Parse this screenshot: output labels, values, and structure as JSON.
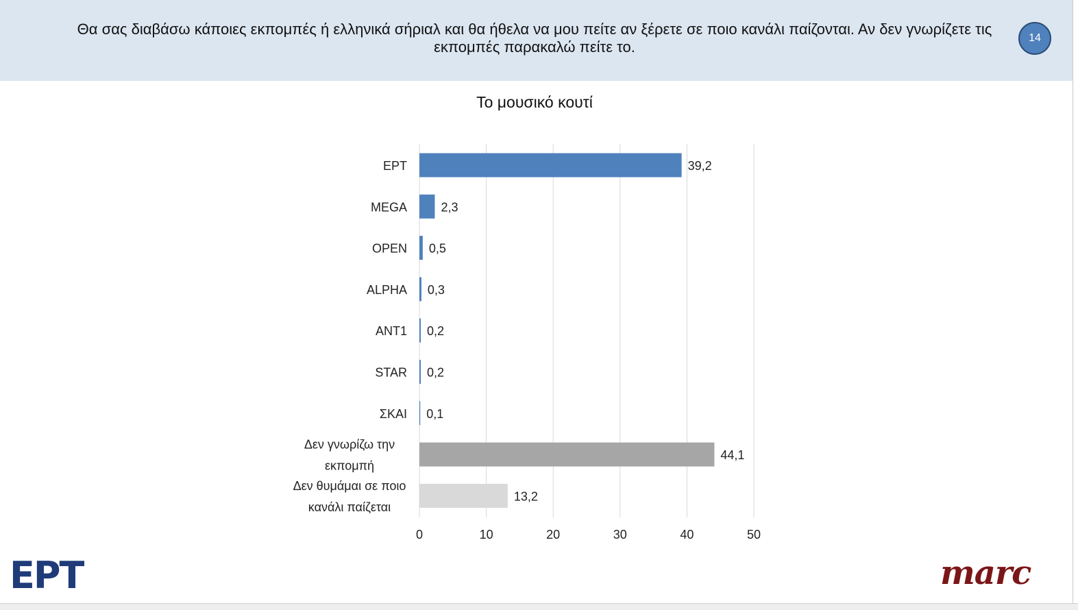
{
  "header": {
    "question": "Θα σας διαβάσω κάποιες εκπομπές ή ελληνικά σήριαλ και θα ήθελα να μου πείτε αν ξέρετε σε ποιο κανάλι παίζονται. Αν δεν γνωρίζετε τις εκπομπές παρακαλώ πείτε το.",
    "page_number": "14"
  },
  "logos": {
    "left": "ΕΡΤ",
    "right": "marc"
  },
  "chart_data": {
    "type": "bar",
    "orientation": "horizontal",
    "title": "Το μουσικό κουτί",
    "categories": [
      "ΕΡΤ",
      "MEGA",
      "OPEN",
      "ALPHA",
      "ANT1",
      "STAR",
      "ΣΚΑΙ",
      "Δεν γνωρίζω την εκπομπή",
      "Δεν θυμάμαι σε ποιο κανάλι παίζεται"
    ],
    "category_lines": [
      [
        "ΕΡΤ"
      ],
      [
        "MEGA"
      ],
      [
        "OPEN"
      ],
      [
        "ALPHA"
      ],
      [
        "ANT1"
      ],
      [
        "STAR"
      ],
      [
        "ΣΚΑΙ"
      ],
      [
        "Δεν γνωρίζω την",
        "εκπομπή"
      ],
      [
        "Δεν θυμάμαι σε ποιο",
        "κανάλι παίζεται"
      ]
    ],
    "values": [
      39.2,
      2.3,
      0.5,
      0.3,
      0.2,
      0.2,
      0.1,
      44.1,
      13.2
    ],
    "value_labels": [
      "39,2",
      "2,3",
      "0,5",
      "0,3",
      "0,2",
      "0,2",
      "0,1",
      "44,1",
      "13,2"
    ],
    "colors": [
      "#4f81bd",
      "#4f81bd",
      "#4f81bd",
      "#4f81bd",
      "#4f81bd",
      "#4f81bd",
      "#4f81bd",
      "#a6a6a6",
      "#d9d9d9"
    ],
    "xlim": [
      0,
      50
    ],
    "xticks": [
      0,
      10,
      20,
      30,
      40,
      50
    ],
    "grid": true,
    "legend": "none"
  }
}
